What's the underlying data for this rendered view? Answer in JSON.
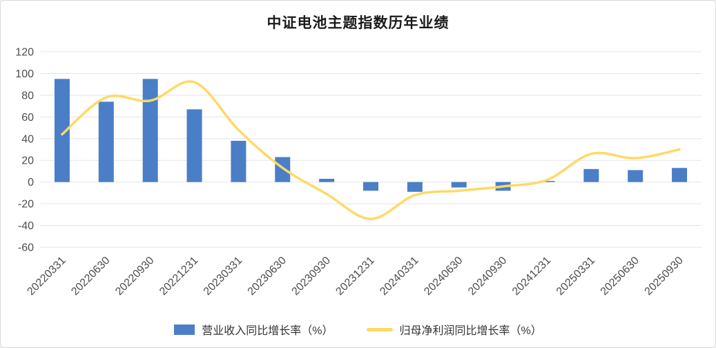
{
  "chart": {
    "title": "中证电池主题指数历年业绩"
  },
  "chart_data": {
    "type": "combo",
    "title": "中证电池主题指数历年业绩",
    "categories": [
      "20220331",
      "20220630",
      "20220930",
      "20221231",
      "20230331",
      "20230630",
      "20230930",
      "20231231",
      "20240331",
      "20240630",
      "20240930",
      "20241231",
      "20250331",
      "20250630",
      "20250930"
    ],
    "series": [
      {
        "name": "营业收入同比增长率（%）",
        "type": "bar",
        "color": "#4a7ec7",
        "values": [
          95,
          74,
          95,
          67,
          38,
          23,
          3,
          -8,
          -9,
          -5,
          -8,
          1,
          12,
          11,
          13
        ]
      },
      {
        "name": "归母净利润同比增长率（%）",
        "type": "line",
        "color": "#ffd966",
        "values": [
          44,
          78,
          75,
          92,
          48,
          13,
          -11,
          -34,
          -12,
          -8,
          -4,
          2,
          26,
          22,
          30
        ]
      }
    ],
    "ylim": [
      -60,
      120
    ],
    "ytick_step": 20,
    "grid": true,
    "legend_position": "bottom",
    "xlabel": "",
    "ylabel": ""
  },
  "colors": {
    "bar": "#4a7ec7",
    "line": "#ffd966",
    "grid": "#e3e3e3",
    "axis_text": "#4d4d4d",
    "title_text": "#1a1a1a",
    "legend_text": "#333333",
    "panel_border": "#d9d9d9",
    "background": "#ffffff"
  }
}
